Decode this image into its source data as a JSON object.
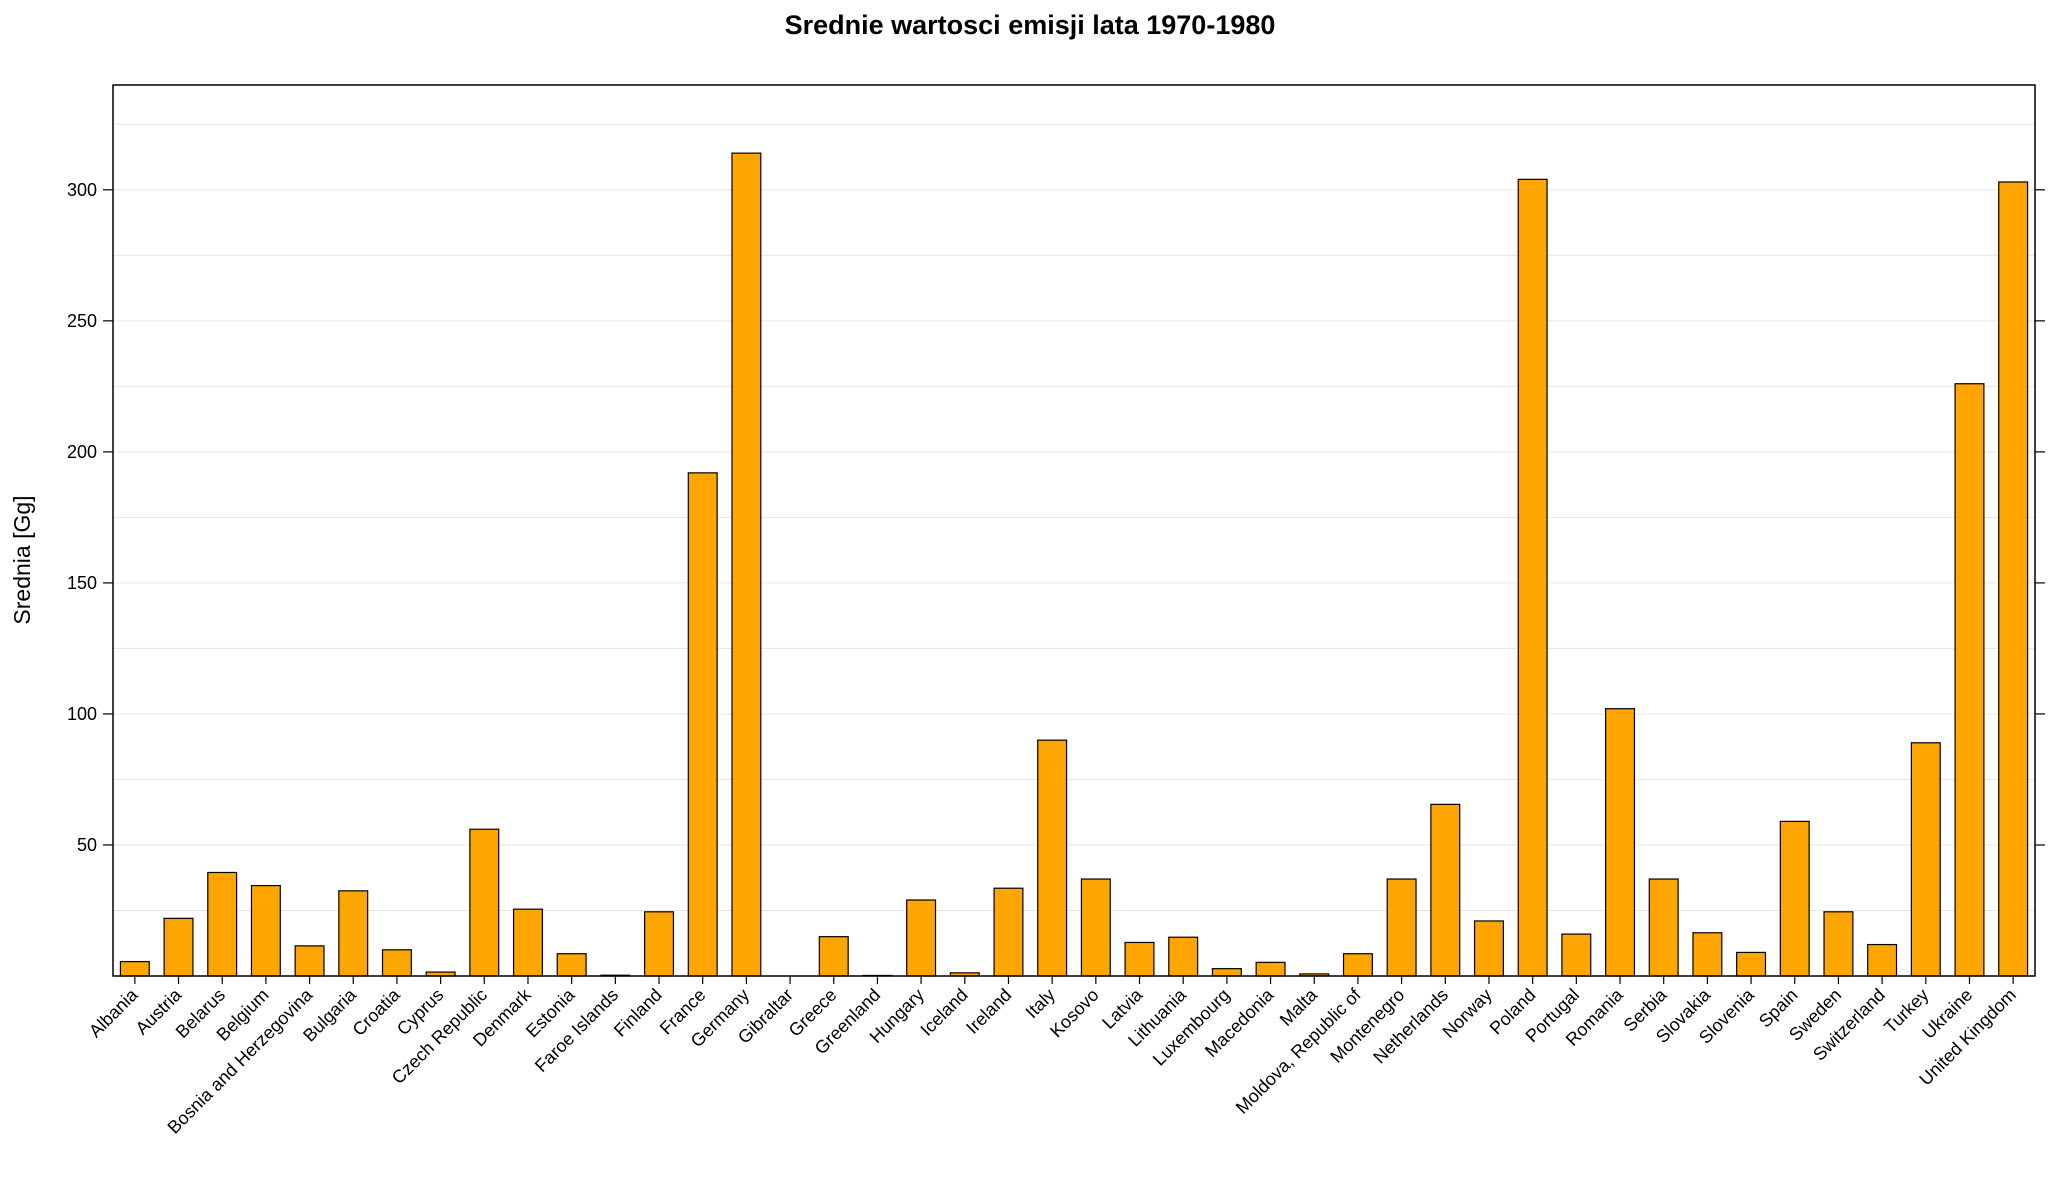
{
  "chart_data": {
    "type": "bar",
    "title": "Srednie wartosci emisji lata 1970-1980",
    "xlabel": "",
    "ylabel": "Srednia [Gg]",
    "ylim": [
      0,
      340
    ],
    "yticks": [
      50,
      100,
      150,
      200,
      250,
      300
    ],
    "grid": true,
    "bar_color": "#FFA500",
    "categories": [
      "Albania",
      "Austria",
      "Belarus",
      "Belgium",
      "Bosnia and Herzegovina",
      "Bulgaria",
      "Croatia",
      "Cyprus",
      "Czech Republic",
      "Denmark",
      "Estonia",
      "Faroe Islands",
      "Finland",
      "France",
      "Germany",
      "Gibraltar",
      "Greece",
      "Greenland",
      "Hungary",
      "Iceland",
      "Ireland",
      "Italy",
      "Kosovo",
      "Latvia",
      "Lithuania",
      "Luxembourg",
      "Macedonia",
      "Malta",
      "Moldova, Republic of",
      "Montenegro",
      "Netherlands",
      "Norway",
      "Poland",
      "Portugal",
      "Romania",
      "Serbia",
      "Slovakia",
      "Slovenia",
      "Spain",
      "Sweden",
      "Switzerland",
      "Turkey",
      "Ukraine",
      "United Kingdom"
    ],
    "values": [
      5.5,
      22,
      39.5,
      34.5,
      11.5,
      32.5,
      10,
      1.5,
      56,
      25.5,
      8.5,
      0.3,
      24.5,
      192,
      314,
      0,
      15,
      0.2,
      29,
      1.2,
      33.5,
      90,
      37,
      12.8,
      14.8,
      2.8,
      5.2,
      0.8,
      8.5,
      37,
      65.5,
      21,
      304,
      16,
      102,
      37,
      16.5,
      9,
      59,
      24.5,
      12,
      89,
      226,
      303
    ]
  }
}
